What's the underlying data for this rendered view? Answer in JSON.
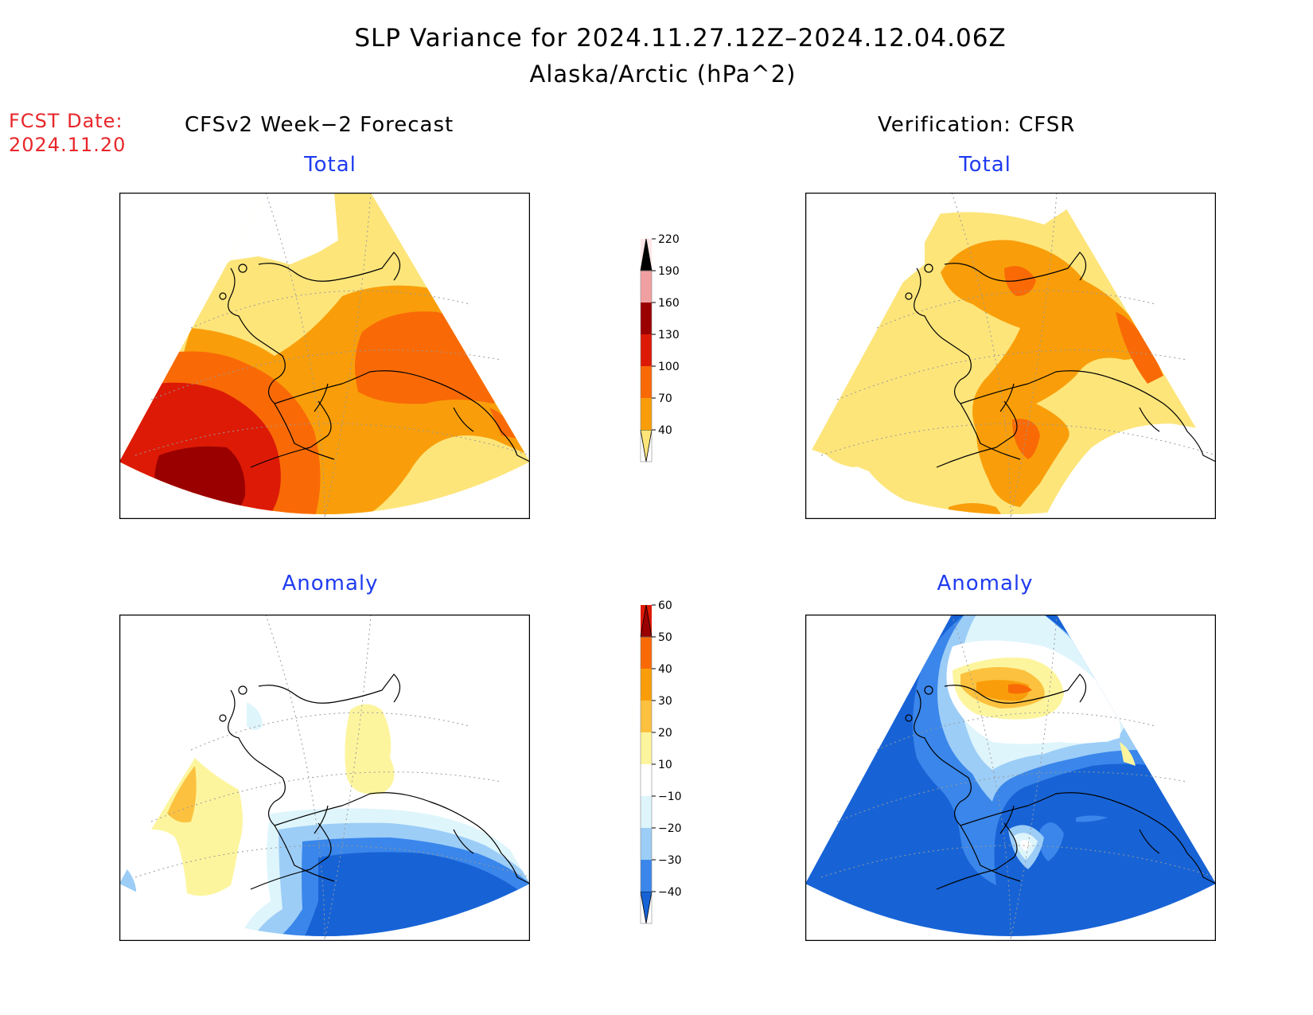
{
  "title": "SLP Variance for 2024.11.27.12Z–2024.12.04.06Z",
  "subtitle": "Alaska/Arctic (hPa^2)",
  "fcst_date_label": "FCST Date:",
  "fcst_date": "2024.11.20",
  "left_header": "CFSv2 Week−2 Forecast",
  "right_header": "Verification: CFSR",
  "panels": {
    "top_left": "Total",
    "top_right": "Total",
    "bottom_left": "Anomaly",
    "bottom_right": "Anomaly"
  },
  "colorbar_total": {
    "levels": [
      "40",
      "70",
      "100",
      "130",
      "160",
      "190",
      "220"
    ],
    "colors": [
      "#fde57a",
      "#f99e0a",
      "#f96a06",
      "#dd1a06",
      "#9a0000",
      "#f1a0a2",
      "#ffe6e6"
    ]
  },
  "colorbar_anomaly": {
    "levels": [
      "−40",
      "−30",
      "−20",
      "−10",
      "10",
      "20",
      "30",
      "40",
      "50",
      "60"
    ],
    "colors": [
      "#1763d6",
      "#3a86ea",
      "#9ccdf7",
      "#def5fc",
      "#ffffff",
      "#fdf59e",
      "#fcc13e",
      "#f99e0a",
      "#f96a06",
      "#dd1a06",
      "#9a0000"
    ]
  },
  "colors": {
    "title_blue": "#1f3cf0",
    "fcst_red": "#e8262a"
  }
}
